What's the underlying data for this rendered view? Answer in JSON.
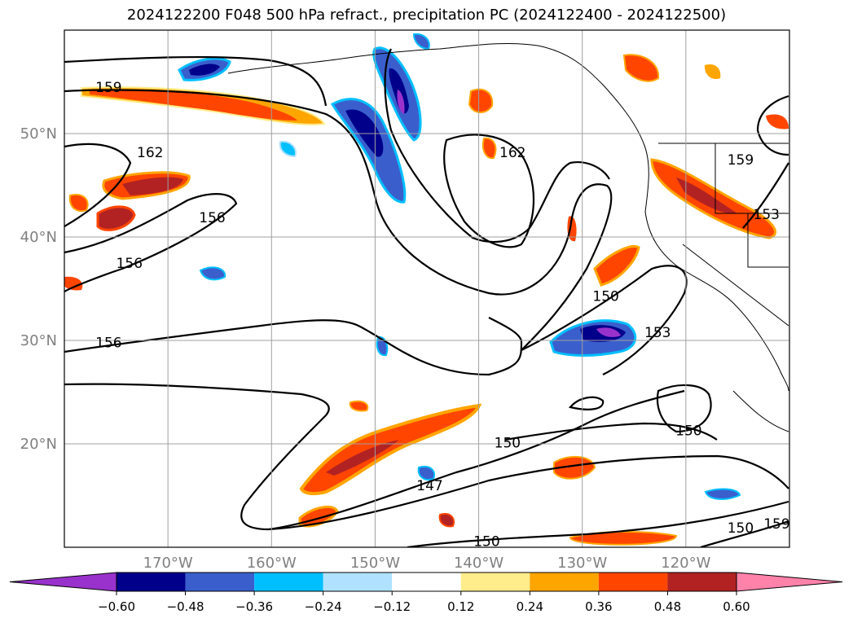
{
  "chart_data": {
    "type": "contour-map",
    "title": "2024122200 F048 500 hPa refract., precipitation PC (2024122400 - 2024122500)",
    "lat_ticks": [
      "50°N",
      "40°N",
      "30°N",
      "20°N"
    ],
    "lat_values": [
      50,
      40,
      30,
      20
    ],
    "lon_ticks": [
      "170°W",
      "160°W",
      "150°W",
      "140°W",
      "130°W",
      "120°W"
    ],
    "lon_values": [
      -170,
      -160,
      -150,
      -140,
      -130,
      -120
    ],
    "lon_range": [
      -180,
      -110
    ],
    "lat_range": [
      10,
      60
    ],
    "grid": true,
    "contour_labels": [
      {
        "text": "159",
        "lon": -177,
        "lat": 54.5
      },
      {
        "text": "162",
        "lon": -173,
        "lat": 48.2
      },
      {
        "text": "156",
        "lon": -167,
        "lat": 41.9
      },
      {
        "text": "156",
        "lon": -175,
        "lat": 37.5
      },
      {
        "text": "156",
        "lon": -177,
        "lat": 29.8
      },
      {
        "text": "162",
        "lon": -138,
        "lat": 48.2
      },
      {
        "text": "159",
        "lon": -116,
        "lat": 47.5
      },
      {
        "text": "153",
        "lon": -113.5,
        "lat": 42.2
      },
      {
        "text": "150",
        "lon": -129,
        "lat": 34.3
      },
      {
        "text": "153",
        "lon": -124,
        "lat": 30.8
      },
      {
        "text": "150",
        "lon": -121,
        "lat": 21.3
      },
      {
        "text": "150",
        "lon": -138.5,
        "lat": 20.1
      },
      {
        "text": "147",
        "lon": -146,
        "lat": 16.0
      },
      {
        "text": "150",
        "lon": -140.5,
        "lat": 10.6
      },
      {
        "text": "150",
        "lon": -116,
        "lat": 11.9
      },
      {
        "text": "159",
        "lon": -112.5,
        "lat": 12.3
      }
    ],
    "colorbar": {
      "ticks": [
        "-0.60",
        "-0.48",
        "-0.36",
        "-0.24",
        "-0.12",
        "0.12",
        "0.24",
        "0.36",
        "0.48",
        "0.60"
      ],
      "tick_values": [
        -0.6,
        -0.48,
        -0.36,
        -0.24,
        -0.12,
        0.12,
        0.24,
        0.36,
        0.48,
        0.6
      ],
      "colors": [
        "#9932cc",
        "#00008b",
        "#3a5fcd",
        "#00bfff",
        "#b0e2ff",
        "#ffffff",
        "#ffec8b",
        "#ffa500",
        "#ff4500",
        "#b22222",
        "#ff82ab"
      ]
    }
  }
}
